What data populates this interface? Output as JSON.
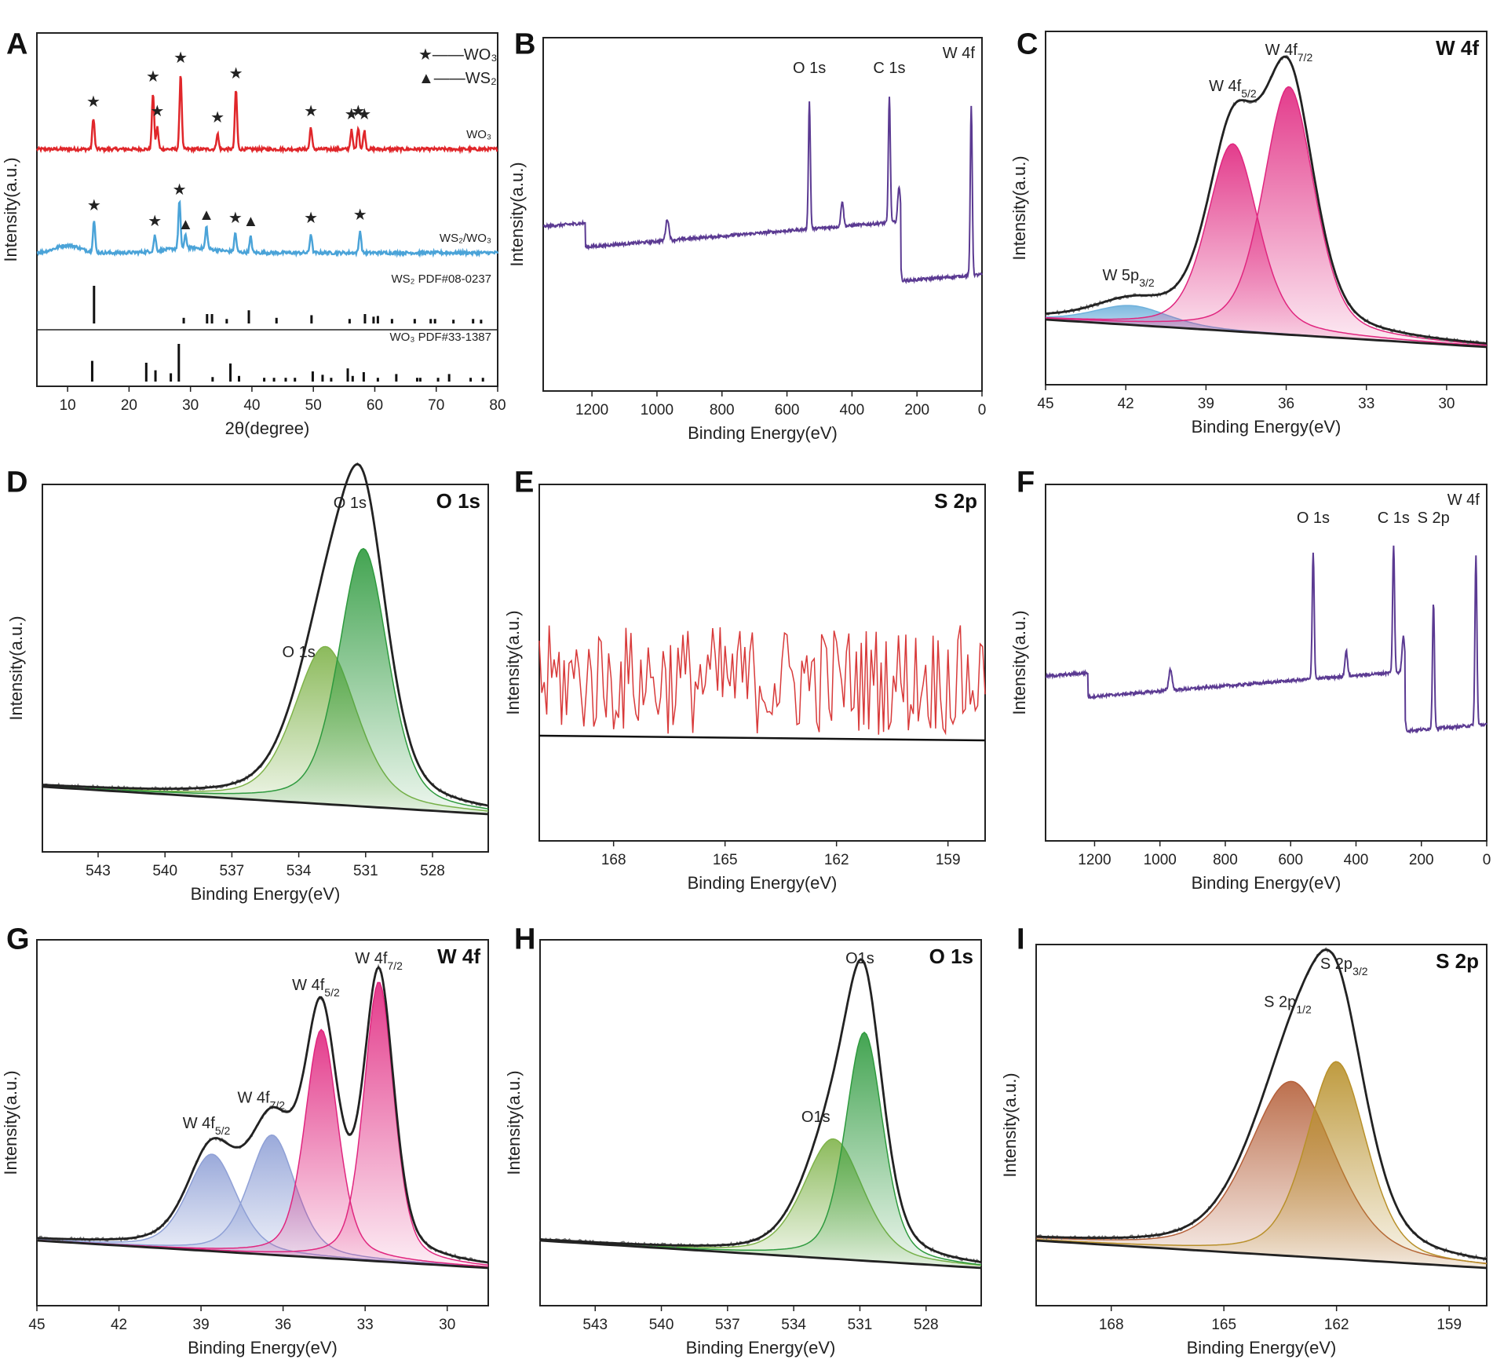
{
  "figure": {
    "panels": [
      {
        "letter": "A",
        "type": "xrd",
        "xlabel": "2θ(degree)",
        "ylabel": "Intensity(a.u.)",
        "xlim": [
          5,
          80
        ],
        "xticks": [
          "10",
          "20",
          "30",
          "40",
          "50",
          "60",
          "70",
          "80"
        ],
        "legend": [
          "★——WO₃",
          "▲——WS₂"
        ],
        "curves": [
          {
            "name": "WO₃",
            "color": "#e0262a",
            "label": "WO₃",
            "peaks": [
              [
                14.2,
                0.5
              ],
              [
                23.9,
                0.9
              ],
              [
                24.6,
                0.35
              ],
              [
                28.4,
                1.2
              ],
              [
                34.4,
                0.25
              ],
              [
                37.4,
                0.95
              ],
              [
                49.6,
                0.35
              ],
              [
                56.2,
                0.3
              ],
              [
                57.3,
                0.35
              ],
              [
                58.3,
                0.3
              ]
            ]
          },
          {
            "name": "WS₂/WO₃",
            "color": "#4aa3d8",
            "label": "WS₂/WO₃",
            "peaks": [
              [
                14.3,
                0.5
              ],
              [
                24.2,
                0.25
              ],
              [
                28.2,
                0.75
              ],
              [
                29.2,
                0.2
              ],
              [
                32.6,
                0.35
              ],
              [
                37.3,
                0.3
              ],
              [
                39.8,
                0.25
              ],
              [
                49.6,
                0.3
              ],
              [
                57.6,
                0.35
              ]
            ]
          }
        ],
        "references": [
          {
            "label": "WS₂ PDF#08-0237",
            "lines": [
              [
                14.3,
                1.0
              ],
              [
                28.9,
                0.15
              ],
              [
                32.7,
                0.25
              ],
              [
                33.5,
                0.25
              ],
              [
                35.9,
                0.12
              ],
              [
                39.5,
                0.35
              ],
              [
                44.0,
                0.15
              ],
              [
                49.7,
                0.22
              ],
              [
                55.9,
                0.12
              ],
              [
                58.4,
                0.25
              ],
              [
                59.8,
                0.18
              ],
              [
                60.5,
                0.2
              ],
              [
                62.8,
                0.12
              ],
              [
                66.5,
                0.12
              ],
              [
                69.1,
                0.12
              ],
              [
                69.8,
                0.12
              ],
              [
                72.8,
                0.1
              ],
              [
                76.0,
                0.12
              ],
              [
                77.3,
                0.1
              ]
            ]
          },
          {
            "label": "WO₃ PDF#33-1387",
            "lines": [
              [
                14.0,
                0.55
              ],
              [
                22.8,
                0.5
              ],
              [
                24.3,
                0.3
              ],
              [
                26.8,
                0.22
              ],
              [
                28.1,
                1.0
              ],
              [
                33.6,
                0.12
              ],
              [
                36.5,
                0.48
              ],
              [
                37.9,
                0.15
              ],
              [
                42.0,
                0.1
              ],
              [
                43.6,
                0.1
              ],
              [
                45.5,
                0.1
              ],
              [
                47.0,
                0.1
              ],
              [
                49.9,
                0.27
              ],
              [
                51.5,
                0.18
              ],
              [
                52.9,
                0.1
              ],
              [
                55.6,
                0.35
              ],
              [
                56.4,
                0.15
              ],
              [
                58.2,
                0.25
              ],
              [
                60.5,
                0.1
              ],
              [
                63.5,
                0.2
              ],
              [
                66.9,
                0.1
              ],
              [
                67.4,
                0.1
              ],
              [
                70.3,
                0.1
              ],
              [
                72.1,
                0.2
              ],
              [
                75.6,
                0.1
              ],
              [
                77.6,
                0.1
              ]
            ]
          }
        ]
      },
      {
        "letter": "B",
        "type": "survey",
        "xlabel": "Binding Energy(eV)",
        "ylabel": "Intensity(a.u.)",
        "xlim": [
          1350,
          0
        ],
        "xticks": [
          "1200",
          "1000",
          "800",
          "600",
          "400",
          "200",
          "0"
        ],
        "color": "#5b3a92",
        "labels": [
          {
            "text": "O 1s",
            "x": 531
          },
          {
            "text": "C 1s",
            "x": 285
          },
          {
            "text": "W 4f",
            "x": 33
          }
        ],
        "corner": ""
      },
      {
        "letter": "C",
        "type": "fit",
        "xlabel": "Binding Energy(eV)",
        "ylabel": "Intensity(a.u.)",
        "xlim": [
          45,
          28.5
        ],
        "xticks": [
          "45",
          "42",
          "39",
          "36",
          "33",
          "30"
        ],
        "corner": "W 4f",
        "components": [
          {
            "center": 41.8,
            "height": 0.07,
            "width": 1.4,
            "color": "#6fb1dc"
          },
          {
            "center": 38.0,
            "height": 0.68,
            "width": 0.95,
            "color": "#e0267f"
          },
          {
            "center": 35.9,
            "height": 0.9,
            "width": 0.95,
            "color": "#e0267f"
          }
        ],
        "labels": [
          {
            "text": "W 5p",
            "sub": "3/2",
            "x": 41.9
          },
          {
            "text": "W 4f",
            "sub": "5/2",
            "x": 38.0
          },
          {
            "text": "W 4f",
            "sub": "7/2",
            "x": 35.9
          }
        ]
      },
      {
        "letter": "D",
        "type": "fit",
        "xlabel": "Binding Energy(eV)",
        "ylabel": "Intensity(a.u.)",
        "xlim": [
          545.5,
          525.5
        ],
        "xticks": [
          "543",
          "540",
          "537",
          "534",
          "531",
          "528"
        ],
        "corner": "O 1s",
        "components": [
          {
            "center": 532.8,
            "height": 0.55,
            "width": 1.4,
            "color": "#7fb34a"
          },
          {
            "center": 531.1,
            "height": 0.9,
            "width": 1.1,
            "color": "#2e9a3e"
          }
        ],
        "labels": [
          {
            "text": "O 1s",
            "sub": "",
            "x": 531.7
          },
          {
            "text": "O 1s",
            "sub": "",
            "x": 534.0
          }
        ]
      },
      {
        "letter": "E",
        "type": "noise",
        "xlabel": "Binding Energy(eV)",
        "ylabel": "Intensity(a.u.)",
        "xlim": [
          170,
          158
        ],
        "xticks": [
          "168",
          "165",
          "162",
          "159"
        ],
        "corner": "S 2p",
        "color": "#d83a3a"
      },
      {
        "letter": "F",
        "type": "survey",
        "xlabel": "Binding Energy(eV)",
        "ylabel": "Intensity(a.u.)",
        "xlim": [
          1350,
          0
        ],
        "xticks": [
          "1200",
          "1000",
          "800",
          "600",
          "400",
          "200",
          "0"
        ],
        "color": "#5b3a92",
        "labels": [
          {
            "text": "O 1s",
            "x": 531
          },
          {
            "text": "C 1s",
            "x": 285
          },
          {
            "text": "S 2p",
            "x": 163
          },
          {
            "text": "W 4f",
            "x": 33
          }
        ],
        "corner": ""
      },
      {
        "letter": "G",
        "type": "fit",
        "xlabel": "Binding Energy(eV)",
        "ylabel": "Intensity(a.u.)",
        "xlim": [
          45,
          28.5
        ],
        "xticks": [
          "45",
          "42",
          "39",
          "36",
          "33",
          "30"
        ],
        "corner": "W 4f",
        "components": [
          {
            "center": 38.6,
            "height": 0.34,
            "width": 0.9,
            "color": "#8fa0d6"
          },
          {
            "center": 36.4,
            "height": 0.42,
            "width": 0.85,
            "color": "#8fa0d6"
          },
          {
            "center": 34.6,
            "height": 0.8,
            "width": 0.6,
            "color": "#e0267f"
          },
          {
            "center": 32.5,
            "height": 0.98,
            "width": 0.55,
            "color": "#e0267f"
          }
        ],
        "labels": [
          {
            "text": "W 4f",
            "sub": "5/2",
            "x": 38.8
          },
          {
            "text": "W 4f",
            "sub": "7/2",
            "x": 36.8
          },
          {
            "text": "W 4f",
            "sub": "5/2",
            "x": 34.8
          },
          {
            "text": "W 4f",
            "sub": "7/2",
            "x": 32.5
          }
        ]
      },
      {
        "letter": "H",
        "type": "fit",
        "xlabel": "Binding Energy(eV)",
        "ylabel": "Intensity(a.u.)",
        "xlim": [
          545.5,
          525.5
        ],
        "xticks": [
          "543",
          "540",
          "537",
          "534",
          "531",
          "528"
        ],
        "corner": "O 1s",
        "components": [
          {
            "center": 532.2,
            "height": 0.42,
            "width": 1.35,
            "color": "#7fb34a"
          },
          {
            "center": 530.8,
            "height": 0.8,
            "width": 0.85,
            "color": "#2e9a3e"
          }
        ],
        "labels": [
          {
            "text": "O1s",
            "sub": "",
            "x": 531.0
          },
          {
            "text": "O1s",
            "sub": "",
            "x": 533.0
          }
        ]
      },
      {
        "letter": "I",
        "type": "fit",
        "xlabel": "Binding Energy(eV)",
        "ylabel": "Intensity(a.u.)",
        "xlim": [
          170,
          158
        ],
        "xticks": [
          "168",
          "165",
          "162",
          "159"
        ],
        "corner": "S 2p",
        "components": [
          {
            "center": 163.2,
            "height": 0.62,
            "width": 1.15,
            "color": "#b5603a"
          },
          {
            "center": 162.0,
            "height": 0.7,
            "width": 0.8,
            "color": "#b8902a"
          }
        ],
        "labels": [
          {
            "text": "S 2p",
            "sub": "1/2",
            "x": 163.3
          },
          {
            "text": "S 2p",
            "sub": "3/2",
            "x": 161.8
          }
        ]
      }
    ]
  },
  "chart_data": [
    {
      "type": "line",
      "title": "A",
      "xlabel": "2θ(degree)",
      "ylabel": "Intensity(a.u.)",
      "xlim": [
        5,
        80
      ],
      "series": [
        {
          "name": "WO₃"
        },
        {
          "name": "WS₂/WO₃"
        },
        {
          "name": "WS₂ PDF#08-0237"
        },
        {
          "name": "WO₃ PDF#33-1387"
        }
      ]
    },
    {
      "type": "line",
      "title": "B",
      "xlabel": "Binding Energy(eV)",
      "ylabel": "Intensity(a.u.)",
      "xlim": [
        1350,
        0
      ],
      "annotations": [
        "O 1s",
        "C 1s",
        "W 4f"
      ]
    },
    {
      "type": "line",
      "title": "C",
      "xlabel": "Binding Energy(eV)",
      "xlim": [
        45,
        28.5
      ],
      "annotations": [
        "W 5p3/2",
        "W 4f5/2",
        "W 4f7/2",
        "W 4f"
      ]
    },
    {
      "type": "line",
      "title": "D",
      "xlabel": "Binding Energy(eV)",
      "ylabel": "Intensity(a.u.)",
      "xlim": [
        545.5,
        525.5
      ],
      "annotations": [
        "O 1s",
        "O 1s",
        "O 1s"
      ]
    },
    {
      "type": "line",
      "title": "E",
      "xlabel": "Binding Energy(eV)",
      "ylabel": "Intensity(a.u.)",
      "xlim": [
        170,
        158
      ],
      "annotations": [
        "S 2p"
      ]
    },
    {
      "type": "line",
      "title": "F",
      "xlabel": "Binding Energy(eV)",
      "ylabel": "Intensity(a.u.)",
      "xlim": [
        1350,
        0
      ],
      "annotations": [
        "O 1s",
        "C 1s",
        "S 2p",
        "W 4f"
      ]
    },
    {
      "type": "line",
      "title": "G",
      "xlabel": "Binding Energy(eV)",
      "ylabel": "Intensity(a.u.)",
      "xlim": [
        45,
        28.5
      ],
      "annotations": [
        "W 4f5/2",
        "W 4f7/2",
        "W 4f5/2",
        "W 4f7/2",
        "W 4f"
      ]
    },
    {
      "type": "line",
      "title": "H",
      "xlabel": "Binding Energy(eV)",
      "ylabel": "Intensity(a.u.)",
      "xlim": [
        545.5,
        525.5
      ],
      "annotations": [
        "O1s",
        "O1s",
        "O 1s"
      ]
    },
    {
      "type": "line",
      "title": "I",
      "xlabel": "Binding Energy(eV)",
      "ylabel": "Intensity(a.u.)",
      "xlim": [
        170,
        158
      ],
      "annotations": [
        "S 2p1/2",
        "S 2p3/2",
        "S 2p"
      ]
    }
  ]
}
